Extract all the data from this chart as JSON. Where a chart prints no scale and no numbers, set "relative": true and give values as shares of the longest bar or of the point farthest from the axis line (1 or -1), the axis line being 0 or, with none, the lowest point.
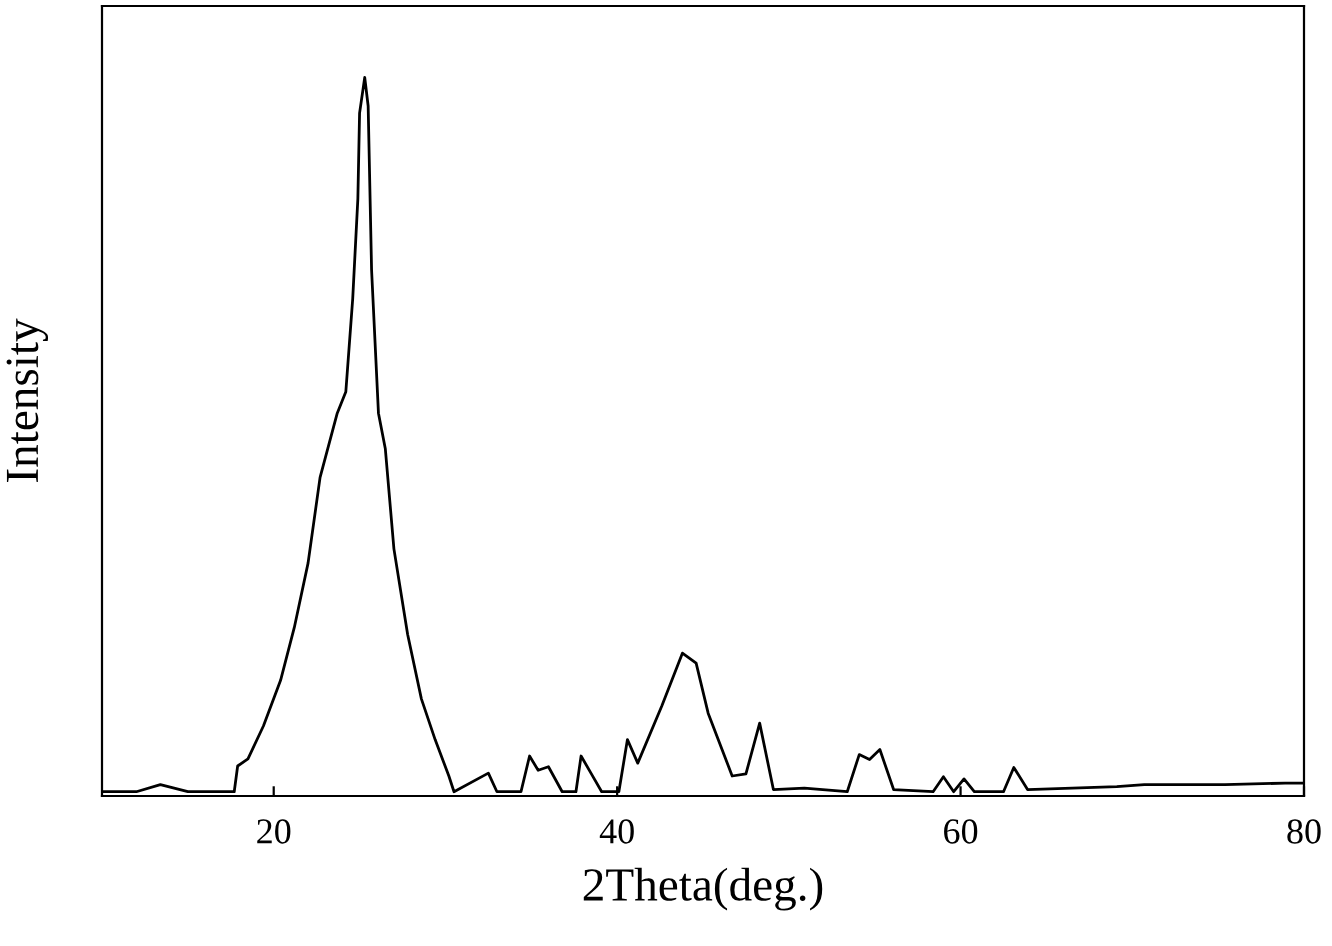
{
  "chart_data": {
    "type": "line",
    "xlabel": "2Theta(deg.)",
    "ylabel": "Intensity",
    "relative": true,
    "xlim": [
      10,
      80
    ],
    "xticks": [
      20,
      40,
      60,
      80
    ],
    "series": [
      {
        "color": "#000000",
        "x": [
          10,
          12,
          13.4,
          15,
          17.7,
          17.9,
          18.5,
          19.4,
          20.4,
          21.2,
          22.0,
          22.7,
          23.7,
          24.2,
          24.6,
          24.9,
          25.0,
          25.3,
          25.5,
          25.7,
          26.1,
          26.5,
          27.0,
          27.8,
          28.6,
          29.4,
          30.2,
          30.5,
          32.5,
          33.0,
          34.4,
          34.9,
          35.4,
          36.0,
          36.8,
          37.6,
          37.9,
          38.5,
          39.1,
          40.1,
          40.6,
          41.2,
          42.6,
          43.8,
          44.6,
          45.3,
          46.7,
          47.5,
          48.3,
          49.1,
          50.9,
          53.4,
          54.1,
          54.7,
          55.3,
          56.1,
          58.4,
          59.0,
          59.6,
          60.2,
          60.8,
          62.5,
          63.1,
          63.9,
          69.1,
          70.7,
          75.4,
          78.9,
          80
        ],
        "values": [
          0,
          0,
          0.01,
          0,
          0,
          0.036,
          0.046,
          0.092,
          0.156,
          0.23,
          0.32,
          0.44,
          0.53,
          0.56,
          0.69,
          0.83,
          0.95,
          1.0,
          0.96,
          0.73,
          0.53,
          0.48,
          0.34,
          0.22,
          0.13,
          0.073,
          0.022,
          0,
          0.026,
          0,
          0,
          0.05,
          0.03,
          0.035,
          0,
          0,
          0.05,
          0.025,
          0,
          0,
          0.073,
          0.04,
          0.12,
          0.194,
          0.18,
          0.11,
          0.022,
          0.025,
          0.096,
          0.003,
          0.005,
          0,
          0.052,
          0.045,
          0.059,
          0.003,
          0,
          0.021,
          0,
          0.018,
          0,
          0,
          0.034,
          0.003,
          0.007,
          0.01,
          0.01,
          0.012,
          0.012
        ]
      }
    ]
  }
}
